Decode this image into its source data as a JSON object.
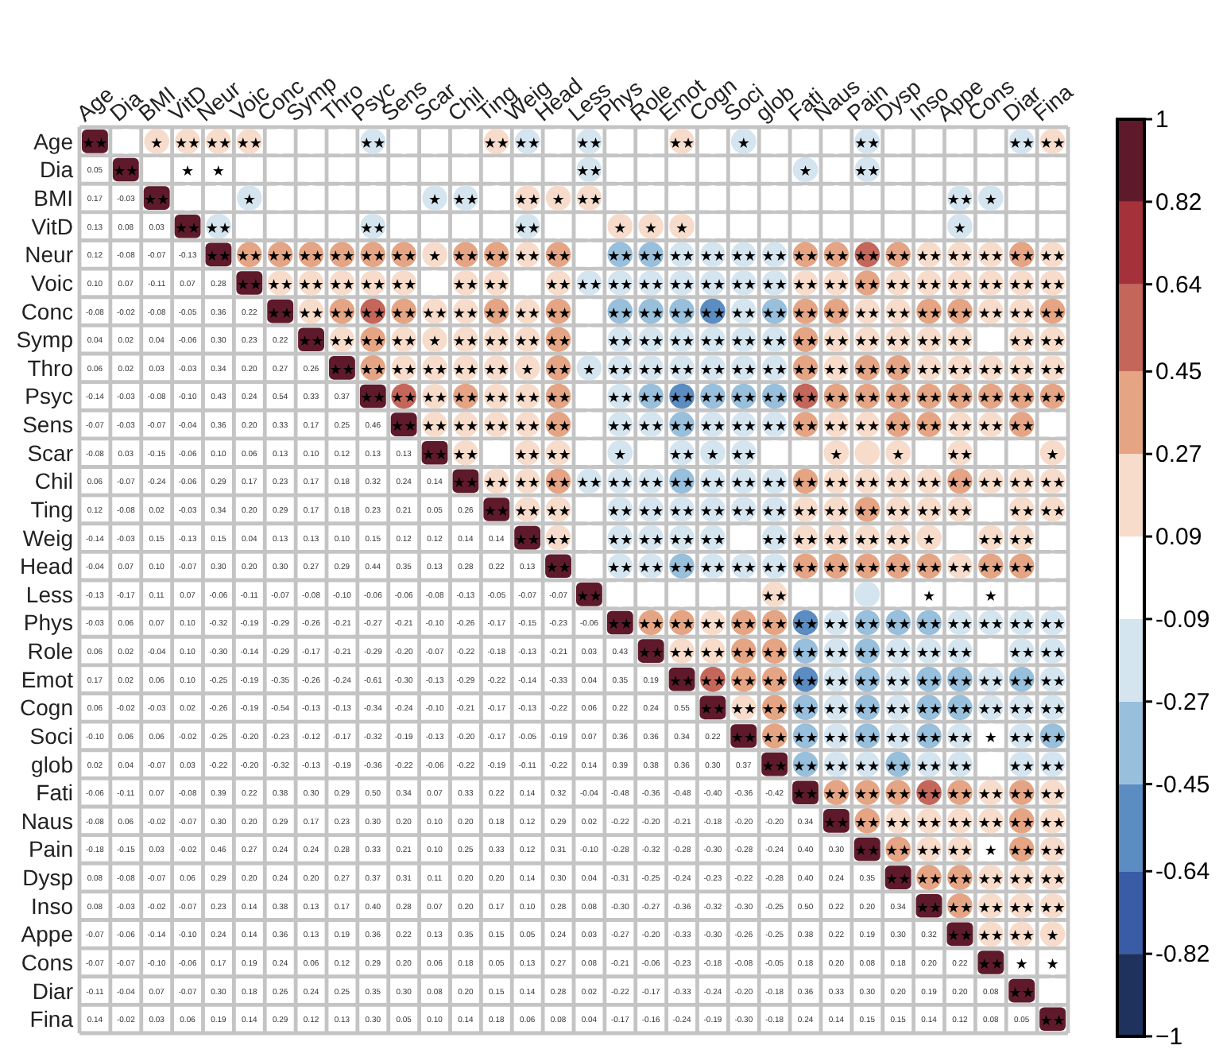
{
  "chart_data": {
    "type": "heatmap",
    "categories": [
      "Age",
      "Dia",
      "BMI",
      "VitD",
      "Neur",
      "Voic",
      "Conc",
      "Symp",
      "Thro",
      "Psyc",
      "Sens",
      "Scar",
      "Chil",
      "Ting",
      "Weig",
      "Head",
      "Less",
      "Phys",
      "Role",
      "Emot",
      "Cogn",
      "Soci",
      "glob",
      "Fati",
      "Naus",
      "Pain",
      "Dysp",
      "Inso",
      "Appe",
      "Cons",
      "Diar",
      "Fina"
    ],
    "y_categories": [
      "Age",
      "Dia",
      "BMI",
      "VitD",
      "Neur",
      "Voic",
      "Conc",
      "Symp",
      "Thro",
      "Psyc",
      "Sens",
      "Scar",
      "Chil",
      "Ting",
      "Weig",
      "Head",
      "Less",
      "Phys",
      "Role",
      "Emot",
      "Cogn",
      "Soci",
      "glob",
      "Fati",
      "Naus",
      "Pain",
      "Dysp",
      "Inso",
      "Appe",
      "Cons",
      "Diar",
      "Fina"
    ],
    "clim": [
      -1,
      1
    ],
    "grid": true,
    "cticks": [
      {
        "value": -1,
        "label": "−1"
      },
      -0.82,
      -0.64,
      -0.45,
      -0.27,
      -0.09,
      0.09,
      0.27,
      0.45,
      0.64,
      0.82,
      1
    ],
    "cells": [
      [
        1,
        0.05,
        0.17,
        0.13,
        0.12,
        0.1,
        -0.08,
        0.04,
        0.06,
        -0.14,
        -0.07,
        -0.08,
        0.06,
        0.12,
        -0.14,
        -0.04,
        -0.13,
        -0.03,
        0.06,
        0.17,
        0.06,
        -0.1,
        0.02,
        -0.06,
        -0.08,
        -0.18,
        0.08,
        0.08,
        -0.07,
        -0.07,
        -0.11,
        0.14
      ],
      [
        null,
        1,
        -0.03,
        0.08,
        -0.08,
        0.07,
        -0.02,
        0.02,
        0.02,
        -0.03,
        -0.03,
        0.03,
        -0.07,
        -0.08,
        -0.03,
        0.07,
        -0.17,
        0.06,
        0.02,
        0.02,
        -0.02,
        0.06,
        0.04,
        -0.11,
        0.06,
        -0.15,
        -0.08,
        -0.03,
        -0.06,
        -0.07,
        -0.04,
        -0.02
      ],
      [
        null,
        null,
        1,
        0.03,
        -0.07,
        -0.11,
        -0.08,
        0.04,
        0.03,
        -0.08,
        -0.07,
        -0.15,
        -0.24,
        0.02,
        0.15,
        0.1,
        0.11,
        0.07,
        -0.04,
        0.06,
        -0.03,
        0.06,
        -0.07,
        0.07,
        -0.02,
        0.03,
        -0.07,
        -0.02,
        -0.14,
        -0.1,
        0.07,
        0.03
      ],
      [
        null,
        null,
        null,
        1,
        -0.13,
        0.07,
        -0.05,
        -0.06,
        -0.03,
        -0.1,
        -0.04,
        -0.06,
        -0.06,
        -0.03,
        -0.13,
        -0.07,
        0.07,
        0.1,
        0.1,
        0.1,
        0.02,
        -0.02,
        0.03,
        -0.08,
        -0.07,
        -0.02,
        0.06,
        -0.07,
        -0.1,
        -0.06,
        -0.07,
        0.06
      ],
      [
        null,
        null,
        null,
        null,
        1,
        0.28,
        0.36,
        0.3,
        0.34,
        0.43,
        0.36,
        0.1,
        0.29,
        0.34,
        0.15,
        0.3,
        -0.06,
        -0.32,
        -0.3,
        -0.25,
        -0.26,
        -0.25,
        -0.22,
        0.39,
        0.3,
        0.46,
        0.29,
        0.23,
        0.24,
        0.17,
        0.3,
        0.19
      ],
      [
        null,
        null,
        null,
        null,
        null,
        1,
        0.22,
        0.23,
        0.2,
        0.24,
        0.2,
        0.06,
        0.17,
        0.2,
        0.04,
        0.2,
        -0.11,
        -0.19,
        -0.14,
        -0.19,
        -0.19,
        -0.2,
        -0.2,
        0.22,
        0.2,
        0.27,
        0.2,
        0.14,
        0.14,
        0.19,
        0.18,
        0.14
      ],
      [
        null,
        null,
        null,
        null,
        null,
        null,
        1,
        0.22,
        0.27,
        0.54,
        0.33,
        0.13,
        0.23,
        0.29,
        0.13,
        0.3,
        -0.07,
        -0.29,
        -0.29,
        -0.35,
        -0.54,
        -0.23,
        -0.32,
        0.38,
        0.29,
        0.24,
        0.24,
        0.38,
        0.36,
        0.24,
        0.26,
        0.29
      ],
      [
        null,
        null,
        null,
        null,
        null,
        null,
        null,
        1,
        0.26,
        0.33,
        0.17,
        0.1,
        0.17,
        0.17,
        0.13,
        0.27,
        -0.08,
        -0.26,
        -0.17,
        -0.26,
        -0.13,
        -0.12,
        -0.13,
        0.3,
        0.17,
        0.24,
        0.2,
        0.13,
        0.13,
        0.06,
        0.24,
        0.12
      ],
      [
        null,
        null,
        null,
        null,
        null,
        null,
        null,
        null,
        1,
        0.37,
        0.25,
        0.12,
        0.18,
        0.18,
        0.1,
        0.29,
        -0.1,
        -0.21,
        -0.21,
        -0.24,
        -0.13,
        -0.17,
        -0.19,
        0.29,
        0.23,
        0.28,
        0.27,
        0.17,
        0.19,
        0.12,
        0.25,
        0.13
      ],
      [
        null,
        null,
        null,
        null,
        null,
        null,
        null,
        null,
        null,
        1,
        0.46,
        0.13,
        0.32,
        0.23,
        0.15,
        0.44,
        -0.06,
        -0.27,
        -0.29,
        -0.61,
        -0.34,
        -0.32,
        -0.36,
        0.5,
        0.3,
        0.33,
        0.37,
        0.4,
        0.36,
        0.29,
        0.35,
        0.3
      ],
      [
        null,
        null,
        null,
        null,
        null,
        null,
        null,
        null,
        null,
        null,
        1,
        0.13,
        0.24,
        0.21,
        0.12,
        0.35,
        -0.06,
        -0.21,
        -0.2,
        -0.3,
        -0.24,
        -0.19,
        -0.22,
        0.34,
        0.2,
        0.21,
        0.31,
        0.28,
        0.22,
        0.2,
        0.3,
        0.05
      ],
      [
        null,
        null,
        null,
        null,
        null,
        null,
        null,
        null,
        null,
        null,
        null,
        1,
        0.14,
        0.05,
        0.12,
        0.13,
        -0.08,
        -0.1,
        -0.07,
        -0.13,
        -0.1,
        -0.13,
        -0.06,
        0.07,
        0.1,
        0.1,
        0.11,
        0.07,
        0.13,
        0.06,
        0.08,
        0.1
      ],
      [
        null,
        null,
        null,
        null,
        null,
        null,
        null,
        null,
        null,
        null,
        null,
        null,
        1,
        0.26,
        0.14,
        0.28,
        -0.13,
        -0.26,
        -0.22,
        -0.29,
        -0.21,
        -0.2,
        -0.22,
        0.33,
        0.2,
        0.25,
        0.2,
        0.2,
        0.35,
        0.18,
        0.2,
        0.14
      ],
      [
        null,
        null,
        null,
        null,
        null,
        null,
        null,
        null,
        null,
        null,
        null,
        null,
        null,
        1,
        0.14,
        0.22,
        -0.05,
        -0.17,
        -0.18,
        -0.22,
        -0.17,
        -0.17,
        -0.19,
        0.22,
        0.18,
        0.33,
        0.2,
        0.17,
        0.15,
        0.05,
        0.15,
        0.18
      ],
      [
        null,
        null,
        null,
        null,
        null,
        null,
        null,
        null,
        null,
        null,
        null,
        null,
        null,
        null,
        1,
        0.13,
        -0.07,
        -0.15,
        -0.13,
        -0.14,
        -0.13,
        -0.05,
        -0.11,
        0.14,
        0.12,
        0.12,
        0.14,
        0.1,
        0.05,
        0.13,
        0.14,
        0.06
      ],
      [
        null,
        null,
        null,
        null,
        null,
        null,
        null,
        null,
        null,
        null,
        null,
        null,
        null,
        null,
        null,
        1,
        -0.07,
        -0.23,
        -0.21,
        -0.33,
        -0.22,
        -0.19,
        -0.22,
        0.32,
        0.29,
        0.31,
        0.3,
        0.28,
        0.24,
        0.27,
        0.28,
        0.08
      ],
      [
        null,
        null,
        null,
        null,
        null,
        null,
        null,
        null,
        null,
        null,
        null,
        null,
        null,
        null,
        null,
        null,
        1,
        -0.06,
        0.03,
        0.04,
        0.06,
        0.07,
        0.14,
        -0.04,
        0.02,
        -0.1,
        0.04,
        0.08,
        0.03,
        0.08,
        0.02,
        0.04
      ],
      [
        null,
        null,
        null,
        null,
        null,
        null,
        null,
        null,
        null,
        null,
        null,
        null,
        null,
        null,
        null,
        null,
        null,
        1,
        0.43,
        0.35,
        0.22,
        0.36,
        0.39,
        -0.48,
        -0.22,
        -0.28,
        -0.31,
        -0.3,
        -0.27,
        -0.21,
        -0.22,
        -0.17
      ],
      [
        null,
        null,
        null,
        null,
        null,
        null,
        null,
        null,
        null,
        null,
        null,
        null,
        null,
        null,
        null,
        null,
        null,
        null,
        1,
        0.19,
        0.24,
        0.36,
        0.38,
        -0.36,
        -0.2,
        -0.32,
        -0.25,
        -0.27,
        -0.2,
        -0.06,
        -0.17,
        -0.16
      ],
      [
        null,
        null,
        null,
        null,
        null,
        null,
        null,
        null,
        null,
        null,
        null,
        null,
        null,
        null,
        null,
        null,
        null,
        null,
        null,
        1,
        0.55,
        0.34,
        0.36,
        -0.48,
        -0.21,
        -0.28,
        -0.24,
        -0.36,
        -0.33,
        -0.23,
        -0.33,
        -0.24
      ],
      [
        null,
        null,
        null,
        null,
        null,
        null,
        null,
        null,
        null,
        null,
        null,
        null,
        null,
        null,
        null,
        null,
        null,
        null,
        null,
        null,
        1,
        0.22,
        0.3,
        -0.4,
        -0.18,
        -0.3,
        -0.23,
        -0.32,
        -0.3,
        -0.18,
        -0.24,
        -0.19
      ],
      [
        null,
        null,
        null,
        null,
        null,
        null,
        null,
        null,
        null,
        null,
        null,
        null,
        null,
        null,
        null,
        null,
        null,
        null,
        null,
        null,
        null,
        1,
        0.37,
        -0.36,
        -0.2,
        -0.28,
        -0.22,
        -0.3,
        -0.26,
        -0.08,
        -0.2,
        -0.3
      ],
      [
        null,
        null,
        null,
        null,
        null,
        null,
        null,
        null,
        null,
        null,
        null,
        null,
        null,
        null,
        null,
        null,
        null,
        null,
        null,
        null,
        null,
        null,
        1,
        -0.42,
        -0.2,
        -0.24,
        -0.28,
        -0.25,
        -0.25,
        -0.05,
        -0.18,
        -0.18
      ],
      [
        null,
        null,
        null,
        null,
        null,
        null,
        null,
        null,
        null,
        null,
        null,
        null,
        null,
        null,
        null,
        null,
        null,
        null,
        null,
        null,
        null,
        null,
        null,
        1,
        0.34,
        0.4,
        0.4,
        0.5,
        0.38,
        0.18,
        0.36,
        0.24
      ],
      [
        null,
        null,
        null,
        null,
        null,
        null,
        null,
        null,
        null,
        null,
        null,
        null,
        null,
        null,
        null,
        null,
        null,
        null,
        null,
        null,
        null,
        null,
        null,
        null,
        1,
        0.3,
        0.24,
        0.22,
        0.22,
        0.2,
        0.33,
        0.14
      ],
      [
        null,
        null,
        null,
        null,
        null,
        null,
        null,
        null,
        null,
        null,
        null,
        null,
        null,
        null,
        null,
        null,
        null,
        null,
        null,
        null,
        null,
        null,
        null,
        null,
        null,
        1,
        0.35,
        0.2,
        0.19,
        0.08,
        0.3,
        0.15
      ],
      [
        null,
        null,
        null,
        null,
        null,
        null,
        null,
        null,
        null,
        null,
        null,
        null,
        null,
        null,
        null,
        null,
        null,
        null,
        null,
        null,
        null,
        null,
        null,
        null,
        null,
        null,
        1,
        0.34,
        0.3,
        0.18,
        0.2,
        0.15
      ],
      [
        null,
        null,
        null,
        null,
        null,
        null,
        null,
        null,
        null,
        null,
        null,
        null,
        null,
        null,
        null,
        null,
        null,
        null,
        null,
        null,
        null,
        null,
        null,
        null,
        null,
        null,
        null,
        1,
        0.32,
        0.2,
        0.19,
        0.14
      ],
      [
        null,
        null,
        null,
        null,
        null,
        null,
        null,
        null,
        null,
        null,
        null,
        null,
        null,
        null,
        null,
        null,
        null,
        null,
        null,
        null,
        null,
        null,
        null,
        null,
        null,
        null,
        null,
        null,
        1,
        0.22,
        0.2,
        0.12
      ],
      [
        null,
        null,
        null,
        null,
        null,
        null,
        null,
        null,
        null,
        null,
        null,
        null,
        null,
        null,
        null,
        null,
        null,
        null,
        null,
        null,
        null,
        null,
        null,
        null,
        null,
        null,
        null,
        null,
        null,
        1,
        0.08,
        0.08
      ],
      [
        null,
        null,
        null,
        null,
        null,
        null,
        null,
        null,
        null,
        null,
        null,
        null,
        null,
        null,
        null,
        null,
        null,
        null,
        null,
        null,
        null,
        null,
        null,
        null,
        null,
        null,
        null,
        null,
        null,
        null,
        1,
        0.05
      ],
      [
        null,
        null,
        null,
        null,
        null,
        null,
        null,
        null,
        null,
        null,
        null,
        null,
        null,
        null,
        null,
        null,
        null,
        null,
        null,
        null,
        null,
        null,
        null,
        null,
        null,
        null,
        null,
        null,
        null,
        null,
        null,
        1
      ]
    ],
    "cell_labels": [
      [
        "★★",
        null,
        "★",
        "★★",
        "★★",
        "★★",
        null,
        null,
        null,
        "★★",
        null,
        null,
        null,
        "★★",
        "★★",
        null,
        "★★",
        null,
        null,
        "★★",
        null,
        "★",
        null,
        null,
        null,
        "★★",
        null,
        null,
        null,
        null,
        "★★",
        "★★"
      ],
      [
        "0.05",
        "★★",
        null,
        "★",
        "★",
        null,
        null,
        null,
        null,
        null,
        null,
        null,
        null,
        null,
        null,
        null,
        "★★",
        null,
        null,
        null,
        null,
        null,
        null,
        "★",
        null,
        "★★",
        null,
        null,
        null,
        null,
        null,
        null
      ],
      [
        "0.17",
        "-0.03",
        "★★",
        null,
        null,
        "★",
        null,
        null,
        null,
        null,
        null,
        "★",
        "★★",
        null,
        "★★",
        "★",
        "★★",
        null,
        null,
        null,
        null,
        null,
        null,
        null,
        null,
        null,
        null,
        null,
        "★★",
        "★",
        null,
        null
      ],
      [
        "0.13",
        "0.08",
        "0.03",
        "★★",
        "★★",
        null,
        null,
        null,
        null,
        "★★",
        null,
        null,
        null,
        null,
        "★★",
        null,
        null,
        "★",
        "★",
        "★",
        null,
        null,
        null,
        null,
        null,
        null,
        null,
        null,
        "★",
        null,
        null,
        null
      ],
      [
        "0.12",
        "-0.08",
        "-0.07",
        "-0.13",
        "★★",
        "★★",
        "★★",
        "★★",
        "★★",
        "★★",
        "★★",
        "★",
        "★★",
        "★★",
        "★★",
        "★★",
        null,
        "★★",
        "★★",
        "★★",
        "★★",
        "★★",
        "★★",
        "★★",
        "★★",
        "★★",
        "★★",
        "★★",
        "★★",
        "★★",
        "★★",
        "★★"
      ],
      [
        "0.10",
        "0.07",
        "-0.11",
        "0.07",
        "0.28",
        "★★",
        "★★",
        "★★",
        "★★",
        "★★",
        "★★",
        null,
        "★★",
        "★★",
        null,
        "★★",
        "★★",
        "★★",
        "★★",
        "★★",
        "★★",
        "★★",
        "★★",
        "★★",
        "★★",
        "★★",
        "★★",
        "★★",
        "★★",
        "★★",
        "★★",
        "★★"
      ],
      [
        "-0.08",
        "-0.02",
        "-0.08",
        "-0.05",
        "0.36",
        "0.22",
        "★★",
        "★★",
        "★★",
        "★★",
        "★★",
        "★★",
        "★★",
        "★★",
        "★★",
        "★★",
        null,
        "★★",
        "★★",
        "★★",
        "★★",
        "★★",
        "★★",
        "★★",
        "★★",
        "★★",
        "★★",
        "★★",
        "★★",
        "★★",
        "★★",
        "★★"
      ],
      [
        "0.04",
        "0.02",
        "0.04",
        "-0.06",
        "0.30",
        "0.23",
        "0.22",
        "★★",
        "★★",
        "★★",
        "★★",
        "★",
        "★★",
        "★★",
        "★★",
        "★★",
        null,
        "★★",
        "★★",
        "★★",
        "★★",
        "★★",
        "★★",
        "★★",
        "★★",
        "★★",
        "★★",
        "★★",
        "★★",
        null,
        "★★",
        "★★"
      ],
      [
        "0.06",
        "0.02",
        "0.03",
        "-0.03",
        "0.34",
        "0.20",
        "0.27",
        "0.26",
        "★★",
        "★★",
        "★★",
        "★★",
        "★★",
        "★★",
        "★",
        "★★",
        "★",
        "★★",
        "★★",
        "★★",
        "★★",
        "★★",
        "★★",
        "★★",
        "★★",
        "★★",
        "★★",
        "★★",
        "★★",
        "★★",
        "★★",
        "★★"
      ],
      [
        "-0.14",
        "-0.03",
        "-0.08",
        "-0.10",
        "0.43",
        "0.24",
        "0.54",
        "0.33",
        "0.37",
        "★★",
        "★★",
        "★★",
        "★★",
        "★★",
        "★★",
        "★★",
        null,
        "★★",
        "★★",
        "★★",
        "★★",
        "★★",
        "★★",
        "★★",
        "★★",
        "★★",
        "★★",
        "★★",
        "★★",
        "★★",
        "★★",
        "★★"
      ],
      [
        "-0.07",
        "-0.03",
        "-0.07",
        "-0.04",
        "0.36",
        "0.20",
        "0.33",
        "0.17",
        "0.25",
        "0.46",
        "★★",
        "★★",
        "★★",
        "★★",
        "★★",
        "★★",
        null,
        "★★",
        "★★",
        "★★",
        "★★",
        "★★",
        "★★",
        "★★",
        "★★",
        "★★",
        "★★",
        "★★",
        "★★",
        "★★",
        "★★",
        null
      ],
      [
        "-0.08",
        "0.03",
        "-0.15",
        "-0.06",
        "0.10",
        "0.06",
        "0.13",
        "0.10",
        "0.12",
        "0.13",
        "0.13",
        "★★",
        "★★",
        null,
        "★★",
        "★★",
        null,
        "★",
        null,
        "★★",
        "★",
        "★★",
        null,
        null,
        "★",
        null,
        "★",
        null,
        "★★",
        null,
        null,
        "★"
      ],
      [
        "0.06",
        "-0.07",
        "-0.24",
        "-0.06",
        "0.29",
        "0.17",
        "0.23",
        "0.17",
        "0.18",
        "0.32",
        "0.24",
        "0.14",
        "★★",
        "★★",
        "★★",
        "★★",
        "★★",
        "★★",
        "★★",
        "★★",
        "★★",
        "★★",
        "★★",
        "★★",
        "★★",
        "★★",
        "★★",
        "★★",
        "★★",
        "★★",
        "★★",
        "★★"
      ],
      [
        "0.12",
        "-0.08",
        "0.02",
        "-0.03",
        "0.34",
        "0.20",
        "0.29",
        "0.17",
        "0.18",
        "0.23",
        "0.21",
        "0.05",
        "0.26",
        "★★",
        "★★",
        "★★",
        null,
        "★★",
        "★★",
        "★★",
        "★★",
        "★★",
        "★★",
        "★★",
        "★★",
        "★★",
        "★★",
        "★★",
        "★★",
        null,
        "★★",
        "★★"
      ],
      [
        "-0.14",
        "-0.03",
        "0.15",
        "-0.13",
        "0.15",
        "0.04",
        "0.13",
        "0.13",
        "0.10",
        "0.15",
        "0.12",
        "0.12",
        "0.14",
        "0.14",
        "★★",
        "★★",
        null,
        "★★",
        "★★",
        "★★",
        "★★",
        null,
        "★★",
        "★★",
        "★★",
        "★★",
        "★★",
        "★",
        null,
        "★★",
        "★★",
        null
      ],
      [
        "-0.04",
        "0.07",
        "0.10",
        "-0.07",
        "0.30",
        "0.20",
        "0.30",
        "0.27",
        "0.29",
        "0.44",
        "0.35",
        "0.13",
        "0.28",
        "0.22",
        "0.13",
        "★★",
        null,
        "★★",
        "★★",
        "★★",
        "★★",
        "★★",
        "★★",
        "★★",
        "★★",
        "★★",
        "★★",
        "★★",
        "★★",
        "★★",
        "★★",
        null
      ],
      [
        "-0.13",
        "-0.17",
        "0.11",
        "0.07",
        "-0.06",
        "-0.11",
        "-0.07",
        "-0.08",
        "-0.10",
        "-0.06",
        "-0.06",
        "-0.08",
        "-0.13",
        "-0.05",
        "-0.07",
        "-0.07",
        "★★",
        null,
        null,
        null,
        null,
        null,
        "★★",
        null,
        null,
        null,
        null,
        "★",
        null,
        "★",
        null,
        null
      ],
      [
        "-0.03",
        "0.06",
        "0.07",
        "0.10",
        "-0.32",
        "-0.19",
        "-0.29",
        "-0.26",
        "-0.21",
        "-0.27",
        "-0.21",
        "-0.10",
        "-0.26",
        "-0.17",
        "-0.15",
        "-0.23",
        "-0.06",
        "★★",
        "★★",
        "★★",
        "★★",
        "★★",
        "★★",
        "★★",
        "★★",
        "★★",
        "★★",
        "★★",
        "★★",
        "★★",
        "★★",
        "★★"
      ],
      [
        "0.06",
        "0.02",
        "-0.04",
        "0.10",
        "-0.30",
        "-0.14",
        "-0.29",
        "-0.17",
        "-0.21",
        "-0.29",
        "-0.20",
        "-0.07",
        "-0.22",
        "-0.18",
        "-0.13",
        "-0.21",
        "0.03",
        "0.43",
        "★★",
        "★★",
        "★★",
        "★★",
        "★★",
        "★★",
        "★★",
        "★★",
        "★★",
        "★★",
        "★★",
        null,
        "★★",
        "★★"
      ],
      [
        "0.17",
        "0.02",
        "0.06",
        "0.10",
        "-0.25",
        "-0.19",
        "-0.35",
        "-0.26",
        "-0.24",
        "-0.61",
        "-0.30",
        "-0.13",
        "-0.29",
        "-0.22",
        "-0.14",
        "-0.33",
        "0.04",
        "0.35",
        "0.19",
        "★★",
        "★★",
        "★★",
        "★★",
        "★★",
        "★★",
        "★★",
        "★★",
        "★★",
        "★★",
        "★★",
        "★★",
        "★★"
      ],
      [
        "0.06",
        "-0.02",
        "-0.03",
        "0.02",
        "-0.26",
        "-0.19",
        "-0.54",
        "-0.13",
        "-0.13",
        "-0.34",
        "-0.24",
        "-0.10",
        "-0.21",
        "-0.17",
        "-0.13",
        "-0.22",
        "0.06",
        "0.22",
        "0.24",
        "0.55",
        "★★",
        "★★",
        "★★",
        "★★",
        "★★",
        "★★",
        "★★",
        "★★",
        "★★",
        "★★",
        "★★",
        "★★"
      ],
      [
        "-0.10",
        "0.06",
        "0.06",
        "-0.02",
        "-0.25",
        "-0.20",
        "-0.23",
        "-0.12",
        "-0.17",
        "-0.32",
        "-0.19",
        "-0.13",
        "-0.20",
        "-0.17",
        "-0.05",
        "-0.19",
        "0.07",
        "0.36",
        "0.36",
        "0.34",
        "0.22",
        "★★",
        "★★",
        "★★",
        "★★",
        "★★",
        "★★",
        "★★",
        "★★",
        "★",
        "★★",
        "★★"
      ],
      [
        "0.02",
        "0.04",
        "-0.07",
        "0.03",
        "-0.22",
        "-0.20",
        "-0.32",
        "-0.13",
        "-0.19",
        "-0.36",
        "-0.22",
        "-0.06",
        "-0.22",
        "-0.19",
        "-0.11",
        "-0.22",
        "0.14",
        "0.39",
        "0.38",
        "0.36",
        "0.30",
        "0.37",
        "★★",
        "★★",
        "★★",
        "★★",
        "★★",
        "★★",
        "★★",
        null,
        "★★",
        "★★"
      ],
      [
        "-0.06",
        "-0.11",
        "0.07",
        "-0.08",
        "0.39",
        "0.22",
        "0.38",
        "0.30",
        "0.29",
        "0.50",
        "0.34",
        "0.07",
        "0.33",
        "0.22",
        "0.14",
        "0.32",
        "-0.04",
        "-0.48",
        "-0.36",
        "-0.48",
        "-0.40",
        "-0.36",
        "-0.42",
        "★★",
        "★★",
        "★★",
        "★★",
        "★★",
        "★★",
        "★★",
        "★★",
        "★★"
      ],
      [
        "-0.08",
        "0.06",
        "-0.02",
        "-0.07",
        "0.30",
        "0.20",
        "0.29",
        "0.17",
        "0.23",
        "0.30",
        "0.20",
        "0.10",
        "0.20",
        "0.18",
        "0.12",
        "0.29",
        "0.02",
        "-0.22",
        "-0.20",
        "-0.21",
        "-0.18",
        "-0.20",
        "-0.20",
        "0.34",
        "★★",
        "★★",
        "★★",
        "★★",
        "★★",
        "★★",
        "★★",
        "★★"
      ],
      [
        "-0.18",
        "-0.15",
        "0.03",
        "-0.02",
        "0.46",
        "0.27",
        "0.24",
        "0.24",
        "0.28",
        "0.33",
        "0.21",
        "0.10",
        "0.25",
        "0.33",
        "0.12",
        "0.31",
        "-0.10",
        "-0.28",
        "-0.32",
        "-0.28",
        "-0.30",
        "-0.28",
        "-0.24",
        "0.40",
        "0.30",
        "★★",
        "★★",
        "★★",
        "★★",
        "★",
        "★★",
        "★★"
      ],
      [
        "0.08",
        "-0.08",
        "-0.07",
        "0.06",
        "0.29",
        "0.20",
        "0.24",
        "0.20",
        "0.27",
        "0.37",
        "0.31",
        "0.11",
        "0.20",
        "0.20",
        "0.14",
        "0.30",
        "0.04",
        "-0.31",
        "-0.25",
        "-0.24",
        "-0.23",
        "-0.22",
        "-0.28",
        "0.40",
        "0.24",
        "0.35",
        "★★",
        "★★",
        "★★",
        "★★",
        "★★",
        "★★"
      ],
      [
        "0.08",
        "-0.03",
        "-0.02",
        "-0.07",
        "0.23",
        "0.14",
        "0.38",
        "0.13",
        "0.17",
        "0.40",
        "0.28",
        "0.07",
        "0.20",
        "0.17",
        "0.10",
        "0.28",
        "0.08",
        "-0.30",
        "-0.27",
        "-0.36",
        "-0.32",
        "-0.30",
        "-0.25",
        "0.50",
        "0.22",
        "0.20",
        "0.34",
        "★★",
        "★★",
        "★★",
        "★★",
        "★★"
      ],
      [
        "-0.07",
        "-0.06",
        "-0.14",
        "-0.10",
        "0.24",
        "0.14",
        "0.36",
        "0.13",
        "0.19",
        "0.36",
        "0.22",
        "0.13",
        "0.35",
        "0.15",
        "0.05",
        "0.24",
        "0.03",
        "-0.27",
        "-0.20",
        "-0.33",
        "-0.30",
        "-0.26",
        "-0.25",
        "0.38",
        "0.22",
        "0.19",
        "0.30",
        "0.32",
        "★★",
        "★★",
        "★★",
        "★"
      ],
      [
        "-0.07",
        "-0.07",
        "-0.10",
        "-0.06",
        "0.17",
        "0.19",
        "0.24",
        "0.06",
        "0.12",
        "0.29",
        "0.20",
        "0.06",
        "0.18",
        "0.05",
        "0.13",
        "0.27",
        "0.08",
        "-0.21",
        "-0.06",
        "-0.23",
        "-0.18",
        "-0.08",
        "-0.05",
        "0.18",
        "0.20",
        "0.08",
        "0.18",
        "0.20",
        "0.22",
        "★★",
        "★",
        "★"
      ],
      [
        "-0.11",
        "-0.04",
        "0.07",
        "-0.07",
        "0.30",
        "0.18",
        "0.26",
        "0.24",
        "0.25",
        "0.35",
        "0.30",
        "0.08",
        "0.20",
        "0.15",
        "0.14",
        "0.28",
        "0.02",
        "-0.22",
        "-0.17",
        "-0.33",
        "-0.24",
        "-0.20",
        "-0.18",
        "0.36",
        "0.33",
        "0.30",
        "0.20",
        "0.19",
        "0.20",
        "0.08",
        "★★",
        null
      ],
      [
        "0.14",
        "-0.02",
        "0.03",
        "0.06",
        "0.19",
        "0.14",
        "0.29",
        "0.12",
        "0.13",
        "0.30",
        "0.05",
        "0.10",
        "0.14",
        "0.18",
        "0.06",
        "0.08",
        "0.04",
        "-0.17",
        "-0.16",
        "-0.24",
        "-0.19",
        "-0.30",
        "-0.18",
        "0.24",
        "0.14",
        "0.15",
        "0.15",
        "0.14",
        "0.12",
        "0.08",
        "0.05",
        "★★"
      ]
    ]
  }
}
